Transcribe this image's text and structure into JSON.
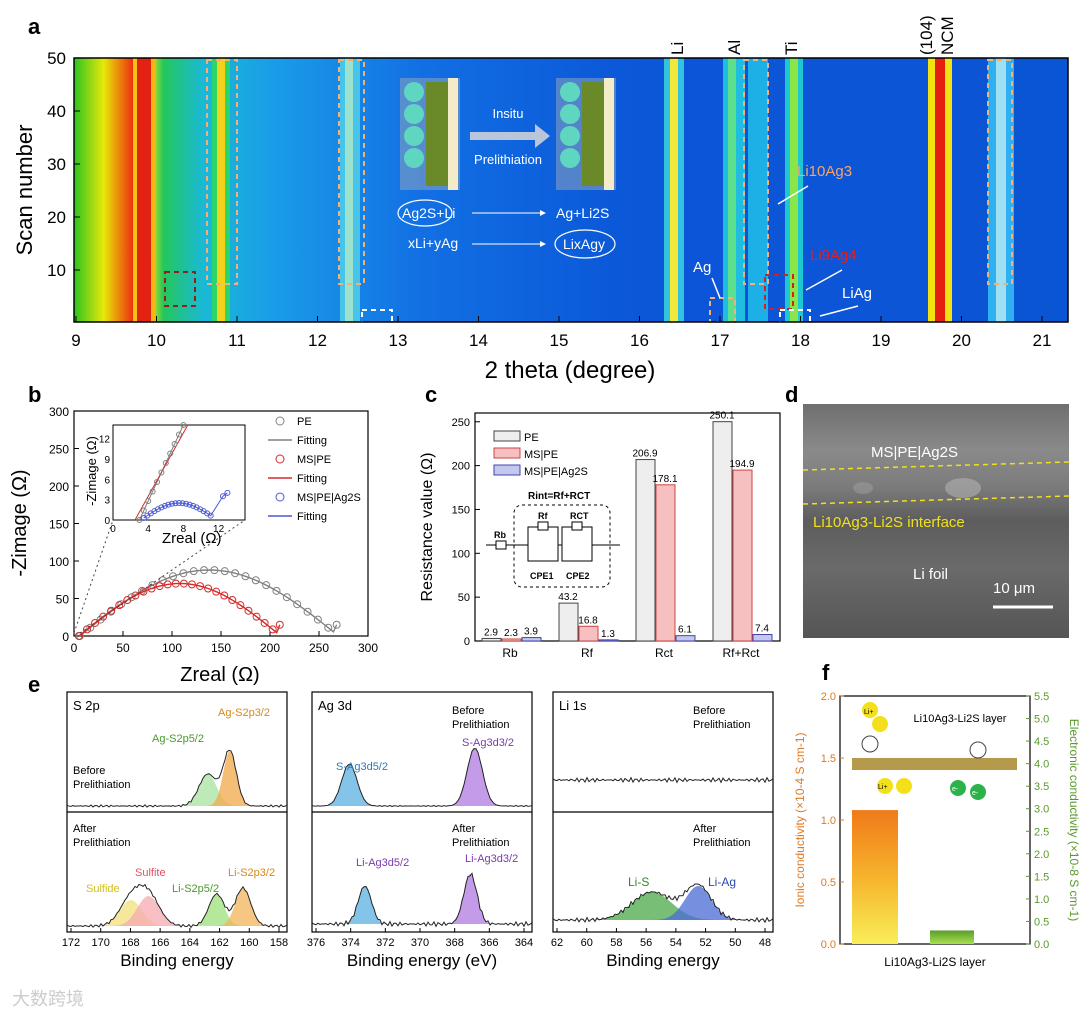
{
  "panels": {
    "a": "a",
    "b": "b",
    "c": "c",
    "d": "d",
    "e": "e",
    "f": "f"
  },
  "a": {
    "ylabel": "Scan number",
    "xlabel": "2 theta (degree)",
    "yticks": [
      "50",
      "40",
      "30",
      "20",
      "10"
    ],
    "xticks": [
      "9",
      "10",
      "11",
      "12",
      "13",
      "14",
      "15",
      "16",
      "17",
      "18",
      "19",
      "20",
      "21"
    ],
    "top_labels": [
      "Li",
      "Al",
      "Ti",
      "(104)",
      "NCM"
    ],
    "insitu": "Insitu",
    "prelithiation": "Prelithiation",
    "eq1_left": "Ag2S+Li",
    "eq1_right": "Ag+Li2S",
    "eq2_left": "xLi+yAg",
    "eq2_right": "LixAgy",
    "annot_li10ag3": "Li10Ag3",
    "annot_ag": "Ag",
    "annot_li9ag4": "Li9Ag4",
    "annot_liag": "LiAg"
  },
  "b": {
    "ylabel": "-Zimage (Ω)",
    "xlabel": "Zreal (Ω)",
    "inset_ylabel": "-Zimage (Ω)",
    "inset_xlabel": "Zreal (Ω)",
    "legend": [
      "PE",
      "Fitting",
      "MS|PE",
      "Fitting",
      "MS|PE|Ag2S",
      "Fitting"
    ],
    "xticks": [
      "0",
      "50",
      "100",
      "150",
      "200",
      "250",
      "300"
    ],
    "yticks": [
      "0",
      "50",
      "100",
      "150",
      "200",
      "250",
      "300"
    ],
    "inset_xticks": [
      "0",
      "4",
      "8",
      "12"
    ],
    "inset_yticks": [
      "0",
      "3",
      "6",
      "9",
      "12"
    ]
  },
  "c": {
    "ylabel": "Resistance value (Ω)",
    "legend": [
      "PE",
      "MS|PE",
      "MS|PE|Ag2S"
    ],
    "equation": "Rint=Rf+RCT",
    "circuit_labels": [
      "Rb",
      "Rf",
      "RCT",
      "CPE1",
      "CPE2"
    ],
    "yticks": [
      "0",
      "50",
      "100",
      "150",
      "200",
      "250"
    ]
  },
  "chart_data": [
    {
      "type": "bar",
      "title": "c",
      "ylabel": "Resistance value (Ω)",
      "categories": [
        "Rb",
        "Rf",
        "Rct",
        "Rf+Rct"
      ],
      "ylim": [
        0,
        260
      ],
      "series": [
        {
          "name": "PE",
          "values": [
            2.9,
            43.2,
            206.9,
            250.1
          ]
        },
        {
          "name": "MS|PE",
          "values": [
            2.3,
            16.8,
            178.1,
            194.9
          ]
        },
        {
          "name": "MS|PE|Ag2S",
          "values": [
            3.9,
            1.3,
            6.1,
            7.4
          ]
        }
      ]
    },
    {
      "type": "bar",
      "title": "f",
      "categories": [
        "Li10Ag3-Li2S layer"
      ],
      "series": [
        {
          "name": "Ionic conductivity (×10^-4 S cm^-1)",
          "values": [
            1.08
          ]
        },
        {
          "name": "Electronic conductivity (×10^-8 S cm^-1)",
          "values": [
            0.3
          ]
        }
      ],
      "ylim_left": [
        0,
        2.0
      ],
      "ylim_right": [
        0,
        5.5
      ]
    }
  ],
  "c_value_labels": {
    "PE": [
      "2.9",
      "43.2",
      "206.9",
      "250.1"
    ],
    "MSPE": [
      "2.3",
      "16.8",
      "178.1",
      "194.9"
    ],
    "Ag2S": [
      "3.9",
      "1.3",
      "6.1",
      "7.4"
    ]
  },
  "d": {
    "label1": "MS|PE|Ag2S",
    "label2": "Li10Ag3-Li2S interface",
    "label3": "Li foil",
    "scalebar": "10 μm"
  },
  "e": {
    "s2p": {
      "title": "S 2p",
      "before": "Before Prelithiation",
      "after": "After Prelithiation",
      "peaks_before": [
        "Ag-S2p5/2",
        "Ag-S2p3/2"
      ],
      "peaks_after": [
        "Sulfide",
        "Sulfite",
        "Li-S2p5/2",
        "Li-S2p3/2"
      ],
      "xlabel": "Binding energy",
      "xticks": [
        "172",
        "170",
        "168",
        "166",
        "164",
        "162",
        "160",
        "158"
      ]
    },
    "ag3d": {
      "title": "Ag 3d",
      "before": "Before Prelithiation",
      "after": "After Prelithiation",
      "peaks_before": [
        "S-Ag3d5/2",
        "S-Ag3d3/2"
      ],
      "peaks_after": [
        "Li-Ag3d5/2",
        "Li-Ag3d3/2"
      ],
      "xlabel": "Binding energy (eV)",
      "xticks": [
        "376",
        "374",
        "372",
        "370",
        "368",
        "366",
        "364"
      ]
    },
    "li1s": {
      "title": "Li 1s",
      "before": "Before Prelithiation",
      "after": "After Prelithiation",
      "peaks_after": [
        "Li-S",
        "Li-Ag"
      ],
      "xlabel": "Binding energy",
      "xticks": [
        "62",
        "60",
        "58",
        "56",
        "54",
        "52",
        "50",
        "48"
      ]
    }
  },
  "f": {
    "ylabel_left": "Ionic conductivity (×10-4 S cm-1)",
    "ylabel_right": "Electronic conductivity (×10-8 S cm-1)",
    "layer": "Li10Ag3-Li2S layer",
    "xlabel": "Li10Ag3-Li2S layer",
    "yticks_left": [
      "0.0",
      "0.5",
      "1.0",
      "1.5",
      "2.0"
    ],
    "yticks_right": [
      "0.0",
      "0.5",
      "1.0",
      "1.5",
      "2.0",
      "2.5",
      "3.0",
      "3.5",
      "4.0",
      "4.5",
      "5.0",
      "5.5"
    ],
    "li": "Li+",
    "e": "e-"
  },
  "watermark": "大数跨境"
}
